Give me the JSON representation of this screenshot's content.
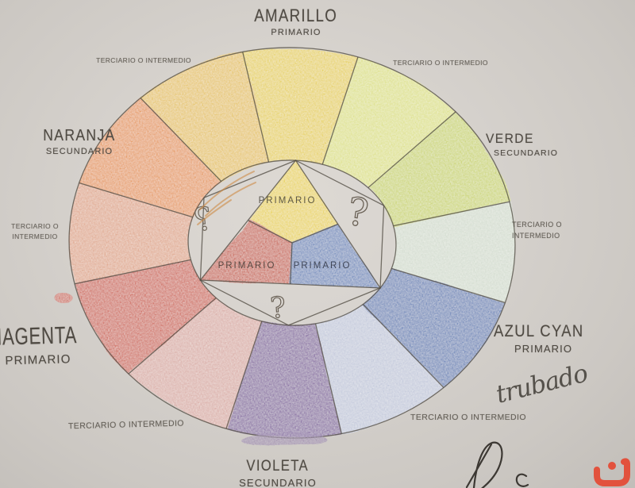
{
  "wheel": {
    "line_color": "#4d483f",
    "paper_color": "#d6d2cd",
    "segments": [
      {
        "name": "amarillo",
        "role": "primario",
        "color": "#e7d04a"
      },
      {
        "name": "amarillo-verde",
        "role": "terciario",
        "color": "#dde17f"
      },
      {
        "name": "verde",
        "role": "secundario",
        "color": "#c9d465"
      },
      {
        "name": "verde-azul",
        "role": "terciario",
        "color": "#d2dbcf"
      },
      {
        "name": "azul-cyan",
        "role": "primario",
        "color": "#5a7ab6"
      },
      {
        "name": "azul-violeta",
        "role": "terciario",
        "color": "#bfc6dc"
      },
      {
        "name": "violeta",
        "role": "secundario",
        "color": "#7d5b9d"
      },
      {
        "name": "violeta-magenta",
        "role": "terciario",
        "color": "#d9a8a2"
      },
      {
        "name": "magenta",
        "role": "primario",
        "color": "#cd5644"
      },
      {
        "name": "magenta-naranja",
        "role": "terciario",
        "color": "#e0a184"
      },
      {
        "name": "naranja",
        "role": "secundario",
        "color": "#e6924b"
      },
      {
        "name": "naranja-amarillo",
        "role": "terciario",
        "color": "#e6c153"
      }
    ],
    "labels": {
      "top": {
        "title": "AMARILLO",
        "subtitle": "PRIMARIO"
      },
      "top_left_tertiary": "TERCIARIO O INTERMEDIO",
      "top_right_tertiary": "TERCIARIO O INTERMEDIO",
      "left": {
        "title": "NARANJA",
        "subtitle": "SECUNDARIO"
      },
      "right": {
        "title": "VERDE",
        "subtitle": "SECUNDARIO"
      },
      "mid_left_tertiary_l1": "TERCIARIO O",
      "mid_left_tertiary_l2": "INTERMEDIO",
      "mid_right_tertiary_l1": "TERCIARIO O",
      "mid_right_tertiary_l2": "INTERMEDIO",
      "bottom_left": {
        "title": "MAGENTA",
        "subtitle": "PRIMARIO"
      },
      "bottom_right": {
        "title": "AZUL CYAN",
        "subtitle": "PRIMARIO"
      },
      "bottom_left_tertiary": "TERCIARIO O INTERMEDIO",
      "bottom_right_tertiary": "TERCIARIO O INTERMEDIO",
      "bottom": {
        "title": "VIOLETA",
        "subtitle": "SECUNDARIO"
      }
    },
    "center": {
      "primaries": [
        {
          "position": "top",
          "label": "PRIMARIO",
          "color": "#e9d247"
        },
        {
          "position": "bottom-left",
          "label": "PRIMARIO",
          "color": "#c75441"
        },
        {
          "position": "bottom-right",
          "label": "PRIMARIO",
          "color": "#6282bb"
        }
      ],
      "question_marks": [
        "?",
        "?",
        "?"
      ]
    }
  },
  "annotations": {
    "signature": "trubado",
    "logo_icon": "orange-noon-glyph"
  }
}
